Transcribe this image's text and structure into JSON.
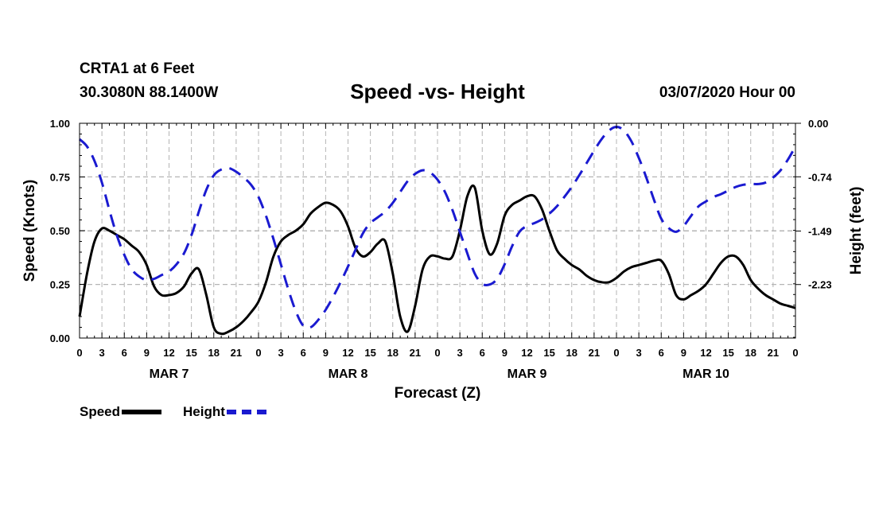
{
  "header": {
    "station": "CRTA1 at 6 Feet",
    "coords": "30.3080N 88.1400W",
    "title": "Speed -vs- Height",
    "datetime": "03/07/2020 Hour 00"
  },
  "legend": {
    "speed": "Speed",
    "height": "Height"
  },
  "colors": {
    "speed": "#000000",
    "height": "#1a1ad0",
    "grid": "#b4b4b4"
  },
  "chart_data": {
    "type": "line",
    "title": "Speed -vs- Height",
    "xlabel": "Forecast (Z)",
    "ylabel": "Speed (Knots)",
    "y2label": "Height (feet)",
    "xlim": [
      0,
      96
    ],
    "ylim": [
      0,
      1
    ],
    "y2lim": [
      -2.97,
      0.0
    ],
    "x_ticks": [
      0,
      3,
      6,
      9,
      12,
      15,
      18,
      21,
      24,
      27,
      30,
      33,
      36,
      39,
      42,
      45,
      48,
      51,
      54,
      57,
      60,
      63,
      66,
      69,
      72,
      75,
      78,
      81,
      84,
      87,
      90,
      93,
      96
    ],
    "x_tick_labels": [
      "0",
      "3",
      "6",
      "9",
      "12",
      "15",
      "18",
      "21",
      "0",
      "3",
      "6",
      "9",
      "12",
      "15",
      "18",
      "21",
      "0",
      "3",
      "6",
      "9",
      "12",
      "15",
      "18",
      "21",
      "0",
      "3",
      "6",
      "9",
      "12",
      "15",
      "18",
      "21",
      "0"
    ],
    "day_labels": [
      {
        "label": "MAR 7",
        "x": 12
      },
      {
        "label": "MAR 8",
        "x": 36
      },
      {
        "label": "MAR 9",
        "x": 60
      },
      {
        "label": "MAR 10",
        "x": 84
      }
    ],
    "y_ticks": [
      0.0,
      0.25,
      0.5,
      0.75,
      1.0
    ],
    "y_tick_labels": [
      "0.00",
      "0.25",
      "0.50",
      "0.75",
      "1.00"
    ],
    "y2_ticks": [
      0.0,
      -0.74,
      -1.49,
      -2.23
    ],
    "y2_tick_labels": [
      "0.00",
      "-0.74",
      "-1.49",
      "-2.23"
    ],
    "series": [
      {
        "name": "Speed",
        "axis": "left",
        "style": "solid",
        "x": [
          0,
          1,
          2,
          3,
          4,
          5,
          6,
          7,
          8,
          9,
          10,
          11,
          12,
          13,
          14,
          15,
          16,
          17,
          18,
          19,
          20,
          21,
          22,
          23,
          24,
          25,
          26,
          27,
          28,
          29,
          30,
          31,
          32,
          33,
          34,
          35,
          36,
          37,
          38,
          39,
          40,
          41,
          42,
          43,
          44,
          45,
          46,
          47,
          48,
          49,
          50,
          51,
          52,
          53,
          54,
          55,
          56,
          57,
          58,
          59,
          60,
          61,
          62,
          63,
          64,
          65,
          66,
          67,
          68,
          69,
          70,
          71,
          72,
          73,
          74,
          75,
          76,
          77,
          78,
          79,
          80,
          81,
          82,
          83,
          84,
          85,
          86,
          87,
          88,
          89,
          90,
          91,
          92,
          93,
          94,
          95,
          96
        ],
        "values": [
          0.1,
          0.3,
          0.45,
          0.51,
          0.5,
          0.48,
          0.46,
          0.43,
          0.4,
          0.34,
          0.24,
          0.2,
          0.2,
          0.21,
          0.24,
          0.3,
          0.32,
          0.2,
          0.05,
          0.02,
          0.03,
          0.05,
          0.08,
          0.12,
          0.17,
          0.26,
          0.38,
          0.45,
          0.48,
          0.5,
          0.53,
          0.58,
          0.61,
          0.63,
          0.62,
          0.59,
          0.52,
          0.42,
          0.38,
          0.4,
          0.44,
          0.45,
          0.3,
          0.1,
          0.03,
          0.15,
          0.32,
          0.38,
          0.38,
          0.37,
          0.38,
          0.5,
          0.66,
          0.7,
          0.5,
          0.39,
          0.44,
          0.57,
          0.62,
          0.64,
          0.66,
          0.66,
          0.6,
          0.5,
          0.41,
          0.37,
          0.34,
          0.32,
          0.29,
          0.27,
          0.26,
          0.26,
          0.28,
          0.31,
          0.33,
          0.34,
          0.35,
          0.36,
          0.36,
          0.3,
          0.2,
          0.18,
          0.2,
          0.22,
          0.25,
          0.3,
          0.35,
          0.38,
          0.38,
          0.34,
          0.27,
          0.23,
          0.2,
          0.18,
          0.16,
          0.15,
          0.14
        ]
      },
      {
        "name": "Height",
        "axis": "right",
        "style": "dashed",
        "x": [
          0,
          1,
          2,
          3,
          4,
          5,
          6,
          7,
          8,
          9,
          10,
          11,
          12,
          13,
          14,
          15,
          16,
          17,
          18,
          19,
          20,
          21,
          22,
          23,
          24,
          25,
          26,
          27,
          28,
          29,
          30,
          31,
          32,
          33,
          34,
          35,
          36,
          37,
          38,
          39,
          40,
          41,
          42,
          43,
          44,
          45,
          46,
          47,
          48,
          49,
          50,
          51,
          52,
          53,
          54,
          55,
          56,
          57,
          58,
          59,
          60,
          61,
          62,
          63,
          64,
          65,
          66,
          67,
          68,
          69,
          70,
          71,
          72,
          73,
          74,
          75,
          76,
          77,
          78,
          79,
          80,
          81,
          82,
          83,
          84,
          85,
          86,
          87,
          88,
          89,
          90,
          91,
          92,
          93,
          94,
          95,
          96
        ],
        "values": [
          -0.22,
          -0.32,
          -0.52,
          -0.82,
          -1.2,
          -1.55,
          -1.82,
          -2.02,
          -2.12,
          -2.17,
          -2.15,
          -2.1,
          -2.05,
          -1.95,
          -1.8,
          -1.55,
          -1.22,
          -0.92,
          -0.72,
          -0.64,
          -0.62,
          -0.67,
          -0.75,
          -0.85,
          -1.02,
          -1.28,
          -1.6,
          -1.95,
          -2.3,
          -2.6,
          -2.8,
          -2.82,
          -2.72,
          -2.58,
          -2.4,
          -2.2,
          -1.98,
          -1.75,
          -1.52,
          -1.38,
          -1.3,
          -1.22,
          -1.1,
          -0.95,
          -0.8,
          -0.7,
          -0.65,
          -0.68,
          -0.78,
          -0.95,
          -1.2,
          -1.5,
          -1.8,
          -2.08,
          -2.22,
          -2.23,
          -2.15,
          -1.95,
          -1.7,
          -1.5,
          -1.42,
          -1.38,
          -1.33,
          -1.25,
          -1.15,
          -1.02,
          -0.88,
          -0.72,
          -0.55,
          -0.38,
          -0.22,
          -0.1,
          -0.05,
          -0.1,
          -0.25,
          -0.48,
          -0.75,
          -1.05,
          -1.32,
          -1.45,
          -1.5,
          -1.42,
          -1.28,
          -1.15,
          -1.08,
          -1.02,
          -0.98,
          -0.93,
          -0.88,
          -0.85,
          -0.84,
          -0.84,
          -0.82,
          -0.75,
          -0.65,
          -0.5,
          -0.32
        ]
      }
    ]
  }
}
